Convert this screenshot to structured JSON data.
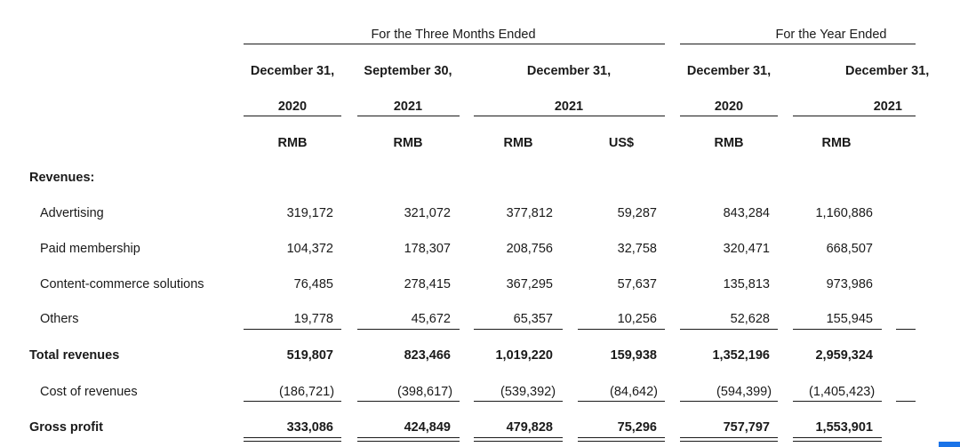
{
  "header": {
    "group_three_months": "For the Three Months Ended",
    "group_year": "For the Year Ended",
    "col_dates": [
      "December 31,",
      "September 30,",
      "December 31,",
      "December 31,",
      "December 31,"
    ],
    "col_years": [
      "2020",
      "2021",
      "2021",
      "2020",
      "2021"
    ],
    "currencies": [
      "RMB",
      "RMB",
      "RMB",
      "US$",
      "RMB",
      "RMB"
    ]
  },
  "section_label": "Revenues:",
  "rows": [
    {
      "label": "Advertising",
      "values": [
        "319,172",
        "321,072",
        "377,812",
        "59,287",
        "843,284",
        "1,160,886"
      ]
    },
    {
      "label": "Paid membership",
      "values": [
        "104,372",
        "178,307",
        "208,756",
        "32,758",
        "320,471",
        "668,507"
      ]
    },
    {
      "label": "Content-commerce solutions",
      "values": [
        "76,485",
        "278,415",
        "367,295",
        "57,637",
        "135,813",
        "973,986"
      ]
    },
    {
      "label": "Others",
      "values": [
        "19,778",
        "45,672",
        "65,357",
        "10,256",
        "52,628",
        "155,945"
      ]
    },
    {
      "label": "Total revenues",
      "values": [
        "519,807",
        "823,466",
        "1,019,220",
        "159,938",
        "1,352,196",
        "2,959,324"
      ]
    },
    {
      "label": "Cost of revenues",
      "values": [
        "(186,721)",
        "(398,617)",
        "(539,392)",
        "(84,642)",
        "(594,399)",
        "(1,405,423)"
      ]
    },
    {
      "label": "Gross profit",
      "values": [
        "333,086",
        "424,849",
        "479,828",
        "75,296",
        "757,797",
        "1,553,901"
      ]
    }
  ]
}
